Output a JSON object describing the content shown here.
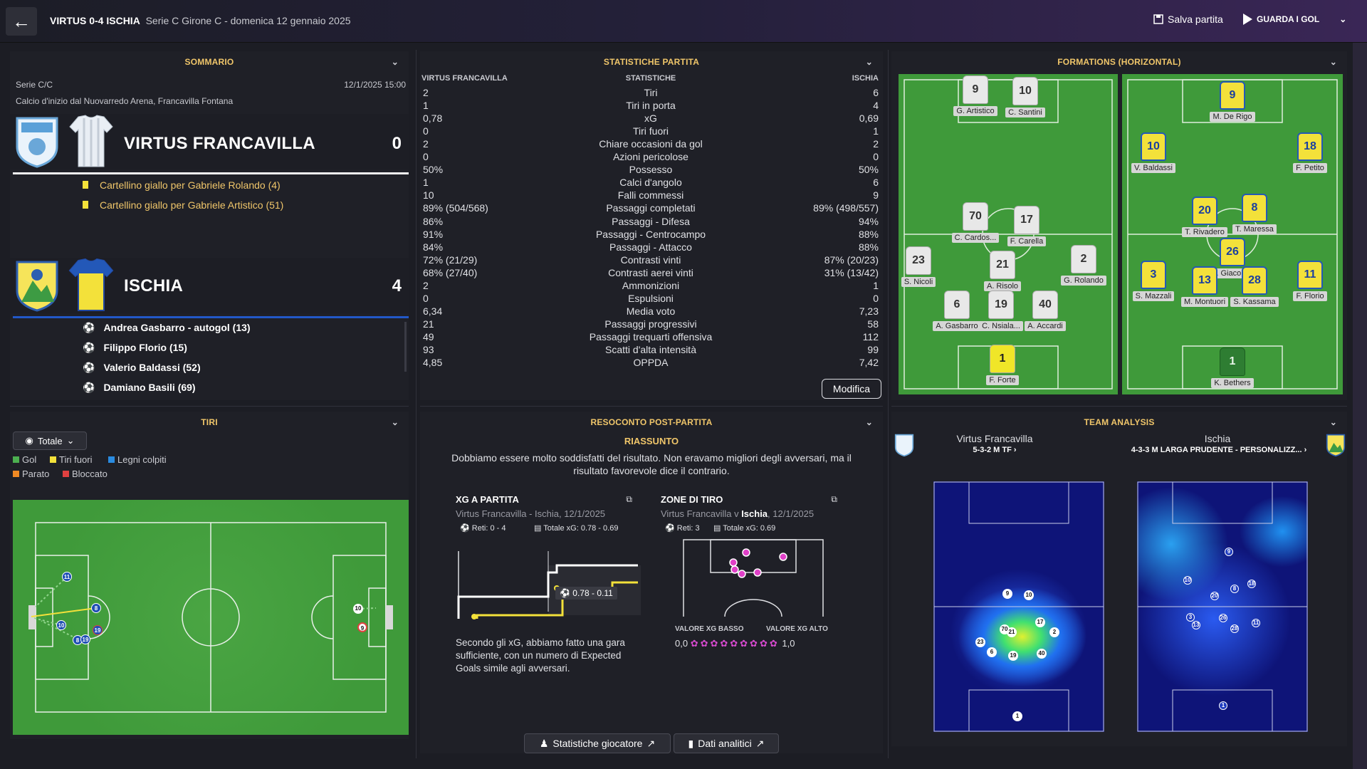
{
  "header": {
    "match": "VIRTUS 0-4 ISCHIA",
    "subtitle": "Serie C Girone C - domenica 12 gennaio 2025",
    "save_label": "Salva partita",
    "goals_label": "GUARDA I GOL"
  },
  "summary": {
    "heading": "SOMMARIO",
    "competition": "Serie C/C",
    "datetime": "12/1/2025 15:00",
    "venue": "Calcio d'inizio dal Nuovarredo Arena, Francavilla Fontana",
    "home": {
      "name": "VIRTUS FRANCAVILLA",
      "score": "0",
      "events": [
        "Cartellino giallo per Gabriele Rolando (4)",
        "Cartellino giallo per Gabriele Artistico (51)"
      ]
    },
    "away": {
      "name": "ISCHIA",
      "score": "4",
      "events": [
        "Andrea Gasbarro - autogol (13)",
        "Filippo Florio (15)",
        "Valerio Baldassi (52)",
        "Damiano Basili (69)"
      ]
    }
  },
  "shots": {
    "heading": "TIRI",
    "filter": "Totale",
    "legend": [
      {
        "label": "Gol",
        "color": "#4caf50"
      },
      {
        "label": "Tiri fuori",
        "color": "#f3e13a"
      },
      {
        "label": "Legni colpiti",
        "color": "#2a8be0"
      },
      {
        "label": "Parato",
        "color": "#f08a24"
      },
      {
        "label": "Bloccato",
        "color": "#e04040"
      }
    ],
    "markers": [
      "11",
      "8",
      "10",
      "19",
      "8",
      "19",
      "10",
      "9"
    ]
  },
  "stats": {
    "heading": "STATISTICHE PARTITA",
    "col_home": "VIRTUS FRANCAVILLA",
    "col_mid": "STATISTICHE",
    "col_away": "ISCHIA",
    "rows": [
      [
        "2",
        "Tiri",
        "6"
      ],
      [
        "1",
        "Tiri in porta",
        "4"
      ],
      [
        "0,78",
        "xG",
        "0,69"
      ],
      [
        "0",
        "Tiri fuori",
        "1"
      ],
      [
        "2",
        "Chiare occasioni da gol",
        "2"
      ],
      [
        "0",
        "Azioni pericolose",
        "0"
      ],
      [
        "50%",
        "Possesso",
        "50%"
      ],
      [
        "1",
        "Calci d'angolo",
        "6"
      ],
      [
        "10",
        "Falli commessi",
        "9"
      ],
      [
        "89% (504/568)",
        "Passaggi completati",
        "89% (498/557)"
      ],
      [
        "86%",
        "Passaggi - Difesa",
        "94%"
      ],
      [
        "91%",
        "Passaggi - Centrocampo",
        "88%"
      ],
      [
        "84%",
        "Passaggi - Attacco",
        "88%"
      ],
      [
        "72% (21/29)",
        "Contrasti vinti",
        "87% (20/23)"
      ],
      [
        "68% (27/40)",
        "Contrasti aerei vinti",
        "31% (13/42)"
      ],
      [
        "2",
        "Ammonizioni",
        "1"
      ],
      [
        "0",
        "Espulsioni",
        "0"
      ],
      [
        "6,34",
        "Media voto",
        "7,23"
      ],
      [
        "21",
        "Passaggi progressivi",
        "58"
      ],
      [
        "49",
        "Passaggi trequarti offensiva",
        "112"
      ],
      [
        "93",
        "Scatti d'alta intensità",
        "99"
      ],
      [
        "4,85",
        "OPPDA",
        "7,42"
      ]
    ],
    "edit_label": "Modifica"
  },
  "formations": {
    "heading": "FORMATIONS (HORIZONTAL)",
    "home": [
      {
        "n": "9",
        "name": "G. Artistico"
      },
      {
        "n": "10",
        "name": "C. Santini"
      },
      {
        "n": "70",
        "name": "C. Cardos..."
      },
      {
        "n": "17",
        "name": "F. Carella"
      },
      {
        "n": "23",
        "name": "S. Nicoli"
      },
      {
        "n": "21",
        "name": "A. Risolo"
      },
      {
        "n": "2",
        "name": "G. Rolando"
      },
      {
        "n": "6",
        "name": "A. Gasbarro"
      },
      {
        "n": "19",
        "name": "C. Nsiala..."
      },
      {
        "n": "40",
        "name": "A. Accardi"
      },
      {
        "n": "1",
        "name": "F. Forte"
      }
    ],
    "away": [
      {
        "n": "9",
        "name": "M. De Rigo"
      },
      {
        "n": "10",
        "name": "V. Baldassi"
      },
      {
        "n": "18",
        "name": "F. Petito"
      },
      {
        "n": "20",
        "name": "T. Rivadero"
      },
      {
        "n": "8",
        "name": "T. Maressa"
      },
      {
        "n": "26",
        "name": "D. Giacom..."
      },
      {
        "n": "3",
        "name": "S. Mazzali"
      },
      {
        "n": "13",
        "name": "M. Montuori"
      },
      {
        "n": "28",
        "name": "S. Kassama"
      },
      {
        "n": "11",
        "name": "F. Florio"
      },
      {
        "n": "1",
        "name": "K. Bethers"
      }
    ]
  },
  "report": {
    "heading": "RESOCONTO POST-PARTITA",
    "summary_title": "RIASSUNTO",
    "summary_text": "Dobbiamo essere molto soddisfatti del risultato. Non eravamo migliori degli avversari, ma il risultato favorevole dice il contrario.",
    "xg": {
      "title": "XG A PARTITA",
      "sub": "Virtus Francavilla - Ischia, 12/1/2025",
      "goals": "Reti: 0 - 4",
      "total": "Totale xG: 0.78 - 0.69",
      "tag": "0.78 - 0.11",
      "text": "Secondo gli xG, abbiamo fatto una gara sufficiente, con un numero di Expected Goals simile agli avversari."
    },
    "zones": {
      "title": "ZONE DI TIRO",
      "sub_pre": "Virtus Francavilla v ",
      "sub_team": "Ischia",
      "sub_post": ", 12/1/2025",
      "goals": "Reti: 3",
      "total": "Totale xG: 0.69",
      "low": "VALORE XG BASSO",
      "high": "VALORE XG ALTO",
      "min": "0,0",
      "max": "1,0"
    },
    "btn_players": "Statistiche giocatore",
    "btn_analytics": "Dati analitici"
  },
  "analysis": {
    "heading": "TEAM ANALYSIS",
    "home_team": "Virtus Francavilla",
    "home_form": "5-3-2 M TF",
    "away_team": "Ischia",
    "away_form": "4-3-3 M LARGA PRUDENTE - PERSONALIZZ...",
    "home_dots": [
      "9",
      "10",
      "70",
      "17",
      "21",
      "2",
      "23",
      "6",
      "19",
      "40",
      "1"
    ],
    "away_dots": [
      "9",
      "10",
      "18",
      "20",
      "8",
      "3",
      "26",
      "13",
      "28",
      "11",
      "1"
    ]
  }
}
